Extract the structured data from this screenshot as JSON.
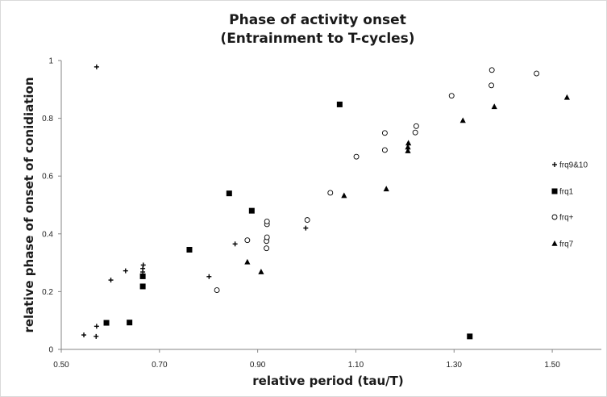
{
  "chart_data": {
    "type": "scatter",
    "title": "Phase of activity onset",
    "subtitle": "(Entrainment to T-cycles)",
    "xlabel": "relative period (tau/T)",
    "ylabel": "relative phase of onset of conidiation",
    "xlim": [
      0.5,
      1.6
    ],
    "ylim": [
      0,
      1
    ],
    "xticks": [
      "0.50",
      "0.70",
      "0.90",
      "1.10",
      "1.30",
      "1.50"
    ],
    "yticks": [
      "0",
      "0.2",
      "0.4",
      "0.6",
      "0.8",
      "1"
    ],
    "grid": false,
    "legend_position": "right",
    "series": [
      {
        "name": "frq9&10",
        "marker": "plus",
        "color": "#000000",
        "points": [
          [
            0.546,
            0.05
          ],
          [
            0.571,
            0.045
          ],
          [
            0.572,
            0.08
          ],
          [
            0.572,
            0.978
          ],
          [
            0.601,
            0.24
          ],
          [
            0.631,
            0.272
          ],
          [
            0.666,
            0.268
          ],
          [
            0.666,
            0.28
          ],
          [
            0.667,
            0.292
          ],
          [
            0.801,
            0.252
          ],
          [
            0.854,
            0.365
          ],
          [
            0.998,
            0.42
          ]
        ]
      },
      {
        "name": "frq1",
        "marker": "square",
        "color": "#000000",
        "points": [
          [
            0.592,
            0.092
          ],
          [
            0.639,
            0.093
          ],
          [
            0.666,
            0.218
          ],
          [
            0.666,
            0.253
          ],
          [
            0.761,
            0.345
          ],
          [
            0.842,
            0.54
          ],
          [
            0.888,
            0.48
          ],
          [
            1.067,
            0.848
          ],
          [
            1.332,
            0.045
          ]
        ]
      },
      {
        "name": "frq+",
        "marker": "circle",
        "color": "#000000",
        "points": [
          [
            0.817,
            0.205
          ],
          [
            0.879,
            0.378
          ],
          [
            0.918,
            0.35
          ],
          [
            0.918,
            0.375
          ],
          [
            0.919,
            0.388
          ],
          [
            0.919,
            0.433
          ],
          [
            0.919,
            0.443
          ],
          [
            1.001,
            0.448
          ],
          [
            1.048,
            0.542
          ],
          [
            1.101,
            0.667
          ],
          [
            1.159,
            0.69
          ],
          [
            1.159,
            0.749
          ],
          [
            1.221,
            0.751
          ],
          [
            1.223,
            0.773
          ],
          [
            1.295,
            0.878
          ],
          [
            1.376,
            0.914
          ],
          [
            1.377,
            0.967
          ],
          [
            1.468,
            0.955
          ]
        ]
      },
      {
        "name": "frq7",
        "marker": "triangle",
        "color": "#000000",
        "points": [
          [
            0.879,
            0.302
          ],
          [
            0.907,
            0.268
          ],
          [
            1.076,
            0.532
          ],
          [
            1.162,
            0.555
          ],
          [
            1.206,
            0.687
          ],
          [
            1.206,
            0.7
          ],
          [
            1.207,
            0.714
          ],
          [
            1.318,
            0.792
          ],
          [
            1.382,
            0.84
          ],
          [
            1.53,
            0.872
          ]
        ]
      }
    ]
  }
}
